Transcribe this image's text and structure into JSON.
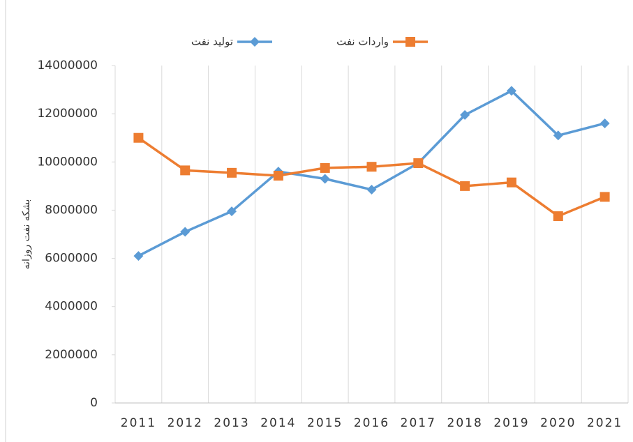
{
  "chart_data": {
    "type": "line",
    "y_label": "بشکه نفت روزانه",
    "categories": [
      "2011",
      "2012",
      "2013",
      "2014",
      "2015",
      "2016",
      "2017",
      "2018",
      "2019",
      "2020",
      "2021"
    ],
    "series": [
      {
        "name": "تولید نفت",
        "color": "#5b9bd5",
        "marker": "diamond",
        "values": [
          6100000,
          7100000,
          7950000,
          9600000,
          9300000,
          8850000,
          9950000,
          11950000,
          12950000,
          11100000,
          11600000
        ]
      },
      {
        "name": "واردات نفت",
        "color": "#ed7d31",
        "marker": "square",
        "values": [
          11000000,
          9650000,
          9550000,
          9430000,
          9750000,
          9800000,
          9950000,
          9000000,
          9150000,
          7750000,
          8550000
        ]
      }
    ],
    "ylim": [
      0,
      14000000
    ],
    "yticks": [
      0,
      2000000,
      4000000,
      6000000,
      8000000,
      10000000,
      12000000,
      14000000
    ],
    "legend": "top"
  }
}
